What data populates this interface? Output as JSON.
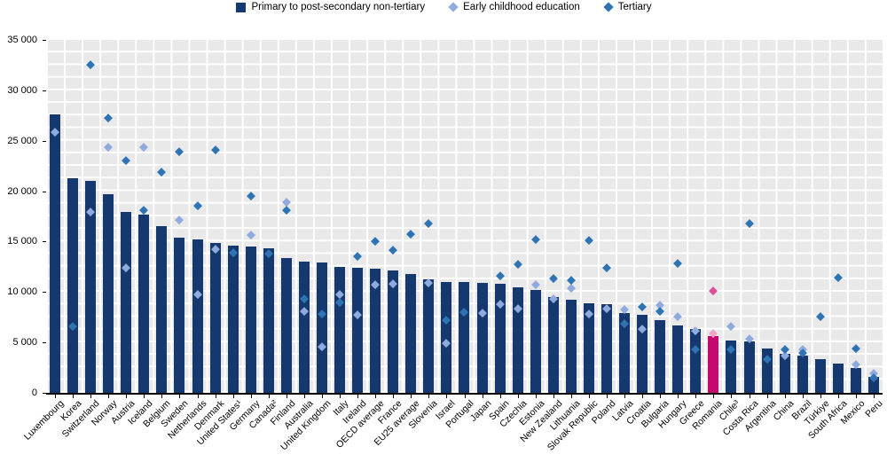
{
  "legend": [
    {
      "label": "Primary to post-secondary non-tertiary",
      "marker": "square",
      "color": "#15396e"
    },
    {
      "label": "Early childhood education",
      "marker": "diamond",
      "color": "#8faadc"
    },
    {
      "label": "Tertiary",
      "marker": "diamond",
      "color": "#2e74b5"
    }
  ],
  "colors": {
    "bar": "#15396e",
    "early_childhood": "#8faadc",
    "tertiary": "#2e74b5",
    "highlight_bar": "#c40a6e",
    "highlight_early_childhood": "#eda4c9",
    "highlight_tertiary": "#db4f9c",
    "plot_background": "#e9e9e9",
    "gridline": "#ffffff"
  },
  "y_axis": {
    "tick_labels": [
      "0",
      "5 000",
      "10 000",
      "15 000",
      "20 000",
      "25 000",
      "30 000",
      "35 000"
    ],
    "tick_values": [
      0,
      5000,
      10000,
      15000,
      20000,
      25000,
      30000,
      35000
    ]
  },
  "chart_data": {
    "type": "bar",
    "title": "",
    "xlabel": "",
    "ylabel": "",
    "ylim": [
      0,
      35000
    ],
    "y_major_interval": 5000,
    "y_minor_interval": 1250,
    "grid": true,
    "legend_position": "top-center",
    "highlighted_category": "Romania",
    "series_names": [
      "Primary to post-secondary non-tertiary",
      "Early childhood education",
      "Tertiary"
    ],
    "points": [
      {
        "country": "Luxembourg",
        "bar": 27600,
        "early_childhood": 25800,
        "tertiary": null
      },
      {
        "country": "Korea",
        "bar": 21300,
        "early_childhood": null,
        "tertiary": 6600
      },
      {
        "country": "Switzerland",
        "bar": 21000,
        "early_childhood": 17900,
        "tertiary": 32500
      },
      {
        "country": "Norway",
        "bar": 19700,
        "early_childhood": 24300,
        "tertiary": 27200
      },
      {
        "country": "Austria",
        "bar": 17900,
        "early_childhood": 12400,
        "tertiary": 23000
      },
      {
        "country": "Iceland",
        "bar": 17700,
        "early_childhood": 24300,
        "tertiary": 18100
      },
      {
        "country": "Belgium",
        "bar": 16500,
        "early_childhood": null,
        "tertiary": 21900
      },
      {
        "country": "Sweden",
        "bar": 15400,
        "early_childhood": 17100,
        "tertiary": 23900
      },
      {
        "country": "Netherlands",
        "bar": 15200,
        "early_childhood": 9700,
        "tertiary": 18500
      },
      {
        "country": "Denmark",
        "bar": 14900,
        "early_childhood": 14200,
        "tertiary": 24100
      },
      {
        "country": "United States¹",
        "bar": 14600,
        "early_childhood": null,
        "tertiary": 13900
      },
      {
        "country": "Germany",
        "bar": 14500,
        "early_childhood": 15600,
        "tertiary": 19500
      },
      {
        "country": "Canada²",
        "bar": 14300,
        "early_childhood": null,
        "tertiary": 13800
      },
      {
        "country": "Finland",
        "bar": 13400,
        "early_childhood": 18900,
        "tertiary": 18100
      },
      {
        "country": "Australia",
        "bar": 13000,
        "early_childhood": 8100,
        "tertiary": 9300
      },
      {
        "country": "United Kingdom",
        "bar": 12900,
        "early_childhood": 4500,
        "tertiary": 7800
      },
      {
        "country": "Italy",
        "bar": 12500,
        "early_childhood": 9700,
        "tertiary": 8900
      },
      {
        "country": "Ireland",
        "bar": 12400,
        "early_childhood": 7700,
        "tertiary": 13500
      },
      {
        "country": "OECD average",
        "bar": 12300,
        "early_childhood": 10700,
        "tertiary": 15000
      },
      {
        "country": "France",
        "bar": 12100,
        "early_childhood": 10800,
        "tertiary": 14100
      },
      {
        "country": "EU25 average",
        "bar": 11800,
        "early_childhood": null,
        "tertiary": 15700
      },
      {
        "country": "Slovenia",
        "bar": 11300,
        "early_childhood": 10900,
        "tertiary": 16800
      },
      {
        "country": "Israel",
        "bar": 11000,
        "early_childhood": 4900,
        "tertiary": 7200
      },
      {
        "country": "Portugal",
        "bar": 11000,
        "early_childhood": null,
        "tertiary": 8000
      },
      {
        "country": "Japan",
        "bar": 10900,
        "early_childhood": 7900,
        "tertiary": null
      },
      {
        "country": "Spain",
        "bar": 10800,
        "early_childhood": 8800,
        "tertiary": 11600
      },
      {
        "country": "Czechia",
        "bar": 10500,
        "early_childhood": 8300,
        "tertiary": 12700
      },
      {
        "country": "Estonia",
        "bar": 10200,
        "early_childhood": 10700,
        "tertiary": 15200
      },
      {
        "country": "New Zealand",
        "bar": 9500,
        "early_childhood": 9300,
        "tertiary": 11300
      },
      {
        "country": "Lithuania",
        "bar": 9200,
        "early_childhood": 10300,
        "tertiary": 11100
      },
      {
        "country": "Slovak Republic",
        "bar": 8900,
        "early_childhood": 7800,
        "tertiary": 15100
      },
      {
        "country": "Poland",
        "bar": 8800,
        "early_childhood": 8300,
        "tertiary": 12400
      },
      {
        "country": "Latvia",
        "bar": 7900,
        "early_childhood": 8200,
        "tertiary": 6800
      },
      {
        "country": "Croatia",
        "bar": 7700,
        "early_childhood": 6300,
        "tertiary": 8500
      },
      {
        "country": "Bulgaria",
        "bar": 7200,
        "early_childhood": 8700,
        "tertiary": 8100
      },
      {
        "country": "Hungary",
        "bar": 6700,
        "early_childhood": 7500,
        "tertiary": 12800
      },
      {
        "country": "Greece",
        "bar": 6300,
        "early_childhood": 6100,
        "tertiary": 4300
      },
      {
        "country": "Romania",
        "bar": 5600,
        "early_childhood": 5900,
        "tertiary": 10100
      },
      {
        "country": "Chile³",
        "bar": 5200,
        "early_childhood": 6600,
        "tertiary": 4300
      },
      {
        "country": "Costa Rica",
        "bar": 5100,
        "early_childhood": 5300,
        "tertiary": 16800
      },
      {
        "country": "Argentina",
        "bar": 4400,
        "early_childhood": null,
        "tertiary": 3300
      },
      {
        "country": "China",
        "bar": 3900,
        "early_childhood": 3700,
        "tertiary": 4300
      },
      {
        "country": "Brazil",
        "bar": 3700,
        "early_childhood": 4300,
        "tertiary": 3900
      },
      {
        "country": "Türkiye",
        "bar": 3300,
        "early_childhood": null,
        "tertiary": 7500
      },
      {
        "country": "South Africa",
        "bar": 2900,
        "early_childhood": null,
        "tertiary": 11400
      },
      {
        "country": "Mexico",
        "bar": 2500,
        "early_childhood": 2800,
        "tertiary": 4400
      },
      {
        "country": "Peru",
        "bar": 1600,
        "early_childhood": 1900,
        "tertiary": 1500
      }
    ]
  }
}
